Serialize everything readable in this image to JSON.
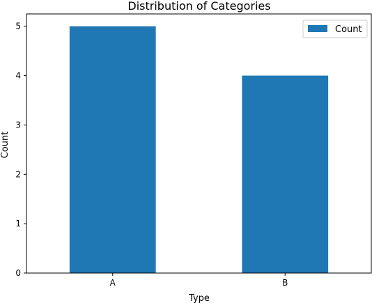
{
  "chart_data": {
    "type": "bar",
    "title": "Distribution of Categories",
    "xlabel": "Type",
    "ylabel": "Count",
    "categories": [
      "A",
      "B"
    ],
    "series": [
      {
        "name": "Count",
        "values": [
          5,
          4
        ],
        "color": "#1f77b4"
      }
    ],
    "ylim": [
      0,
      5.25
    ],
    "yticks": [
      0,
      1,
      2,
      3,
      4,
      5
    ],
    "grid": false,
    "legend": {
      "position": "top-right"
    }
  }
}
